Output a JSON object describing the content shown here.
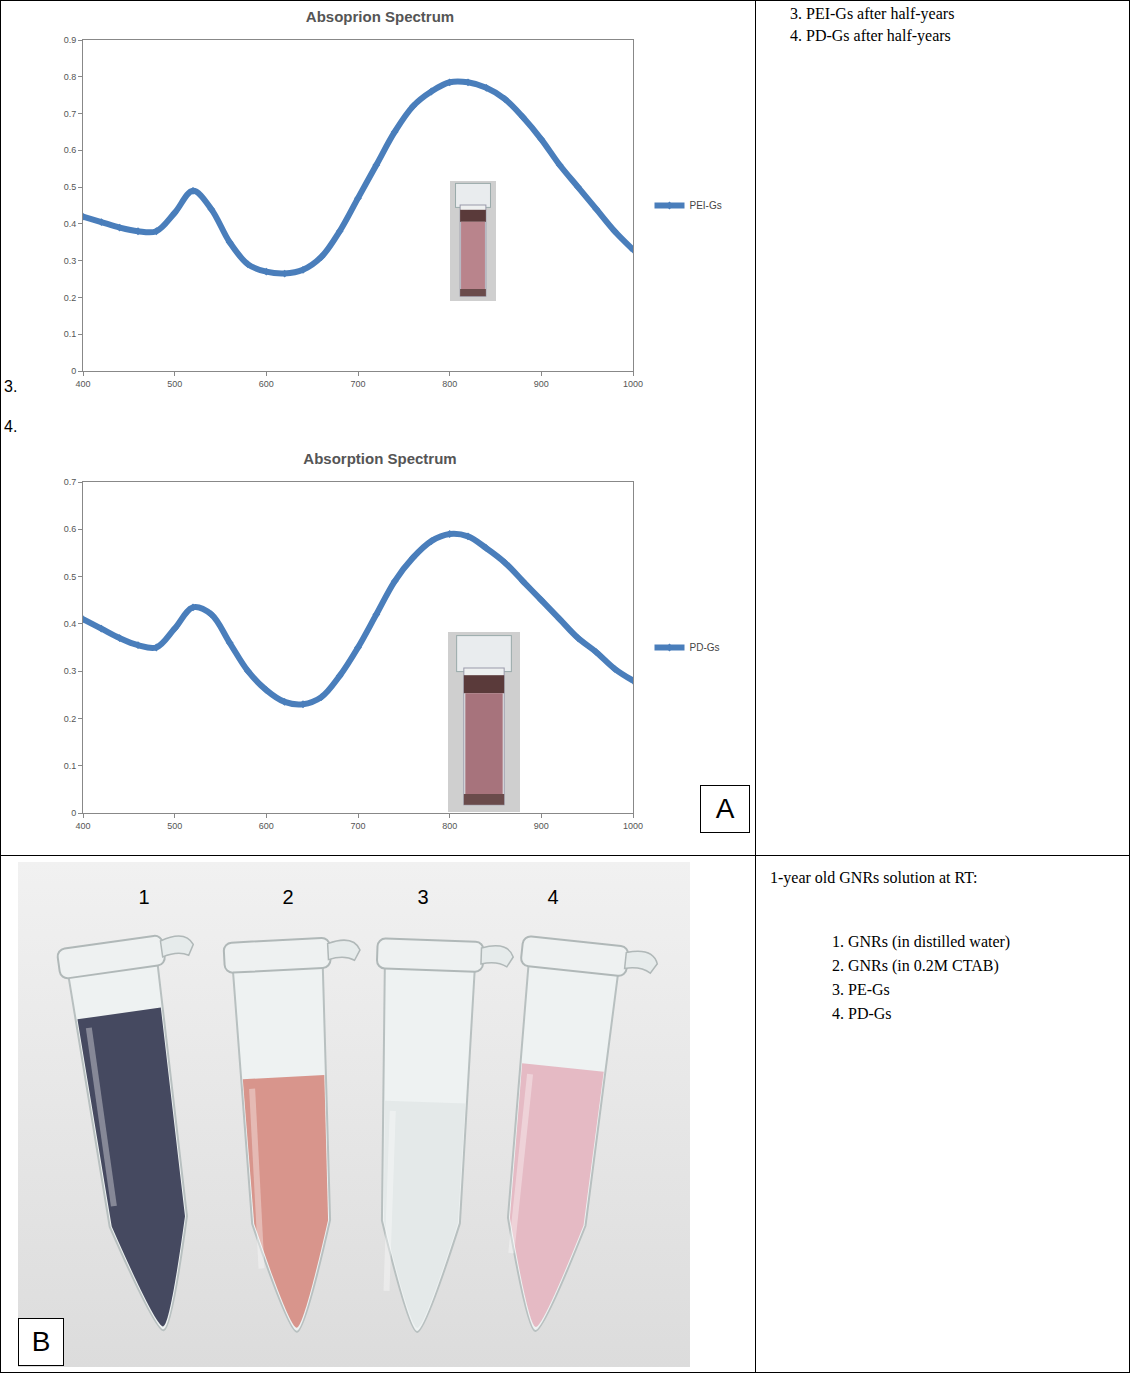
{
  "chart_data": [
    {
      "type": "line",
      "title": "Absoprion Spectrum",
      "x": [
        400,
        420,
        440,
        460,
        480,
        500,
        520,
        540,
        560,
        580,
        600,
        620,
        640,
        660,
        680,
        700,
        720,
        740,
        760,
        780,
        800,
        820,
        840,
        860,
        880,
        900,
        920,
        940,
        960,
        980,
        1000
      ],
      "series": [
        {
          "name": "PEI-Gs",
          "color": "#4a7ebb",
          "marker": "diamond",
          "values": [
            0.42,
            0.405,
            0.39,
            0.38,
            0.38,
            0.43,
            0.49,
            0.44,
            0.35,
            0.29,
            0.27,
            0.265,
            0.275,
            0.31,
            0.38,
            0.47,
            0.56,
            0.65,
            0.72,
            0.76,
            0.785,
            0.785,
            0.77,
            0.74,
            0.69,
            0.63,
            0.56,
            0.5,
            0.44,
            0.38,
            0.33
          ]
        }
      ],
      "xlim": [
        400,
        1000
      ],
      "xticks": [
        400,
        500,
        600,
        700,
        800,
        900,
        1000
      ],
      "ylim": [
        0,
        0.9
      ],
      "yticks": [
        0,
        0.1,
        0.2,
        0.3,
        0.4,
        0.5,
        0.6,
        0.7,
        0.8,
        0.9
      ],
      "grid": false,
      "legend": "right"
    },
    {
      "type": "line",
      "title": "Absorption Spectrum",
      "x": [
        400,
        420,
        440,
        460,
        480,
        500,
        520,
        540,
        560,
        580,
        600,
        620,
        640,
        660,
        680,
        700,
        720,
        740,
        760,
        780,
        800,
        820,
        840,
        860,
        880,
        900,
        920,
        940,
        960,
        980,
        1000
      ],
      "series": [
        {
          "name": "PD-Gs",
          "color": "#4a7ebb",
          "marker": "diamond",
          "values": [
            0.41,
            0.39,
            0.37,
            0.355,
            0.35,
            0.39,
            0.435,
            0.42,
            0.36,
            0.3,
            0.26,
            0.235,
            0.23,
            0.245,
            0.29,
            0.35,
            0.42,
            0.49,
            0.54,
            0.575,
            0.59,
            0.585,
            0.56,
            0.53,
            0.49,
            0.45,
            0.41,
            0.37,
            0.34,
            0.305,
            0.28
          ]
        }
      ],
      "xlim": [
        400,
        1000
      ],
      "xticks": [
        400,
        500,
        600,
        700,
        800,
        900,
        1000
      ],
      "ylim": [
        0,
        0.7
      ],
      "yticks": [
        0,
        0.1,
        0.2,
        0.3,
        0.4,
        0.5,
        0.6,
        0.7
      ],
      "grid": false,
      "legend": "right"
    }
  ],
  "panel_a": {
    "letter": "A",
    "chart_numbers": [
      "3.",
      "4."
    ],
    "notes": [
      "3. PEI-Gs after half-years",
      "4. PD-Gs after half-years"
    ]
  },
  "panel_b": {
    "letter": "B",
    "tube_labels": [
      "1",
      "2",
      "3",
      "4"
    ],
    "caption": "1-year old GNRs solution at RT:",
    "items": [
      "1. GNRs (in distilled water)",
      "2. GNRs (in 0.2M CTAB)",
      "3. PE-Gs",
      "4. PD-Gs"
    ]
  }
}
